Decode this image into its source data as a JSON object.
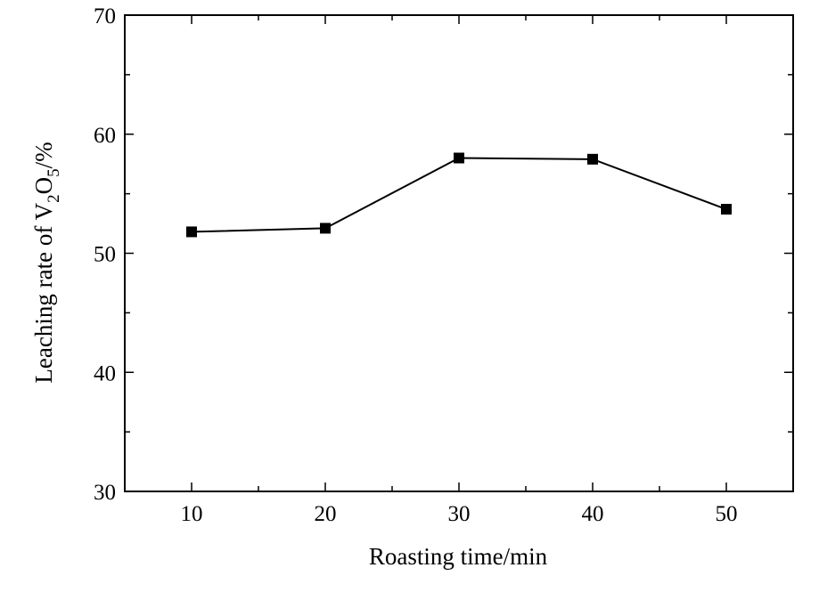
{
  "chart_data": {
    "type": "line",
    "xlabel": "Roasting time/min",
    "ylabel": {
      "prefix": "Leaching rate of V",
      "sub1": "2",
      "mid": "O",
      "sub2": "5",
      "suffix": "/%"
    },
    "xlim": [
      5,
      55
    ],
    "ylim": [
      30,
      70
    ],
    "x_ticks": [
      10,
      20,
      30,
      40,
      50
    ],
    "x_tick_labels": [
      "10",
      "20",
      "30",
      "40",
      "50"
    ],
    "y_ticks": [
      30,
      40,
      50,
      60,
      70
    ],
    "y_tick_labels": [
      "30",
      "40",
      "50",
      "60",
      "70"
    ],
    "grid": false,
    "series": [
      {
        "marker": "square",
        "color": "#000000",
        "x": [
          10,
          20,
          30,
          40,
          50
        ],
        "y": [
          51.8,
          52.1,
          58.0,
          57.9,
          53.7
        ]
      }
    ]
  }
}
